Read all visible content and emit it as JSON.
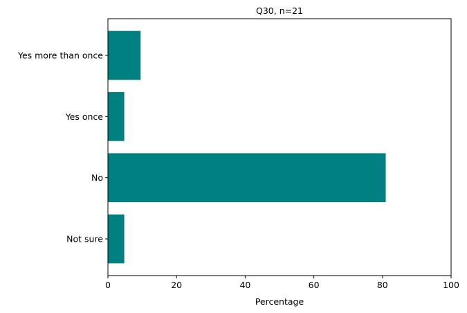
{
  "chart_data": {
    "type": "bar",
    "orientation": "horizontal",
    "title": "Q30, n=21",
    "xlabel": "Percentage",
    "ylabel": "",
    "categories": [
      "Not sure",
      "No",
      "Yes once",
      "Yes more than once"
    ],
    "values": [
      4.76,
      80.95,
      4.76,
      9.52
    ],
    "xlim": [
      0,
      100
    ],
    "xticks": [
      0,
      20,
      40,
      60,
      80,
      100
    ],
    "bar_color": "#008080",
    "grid": false,
    "legend": "none"
  }
}
